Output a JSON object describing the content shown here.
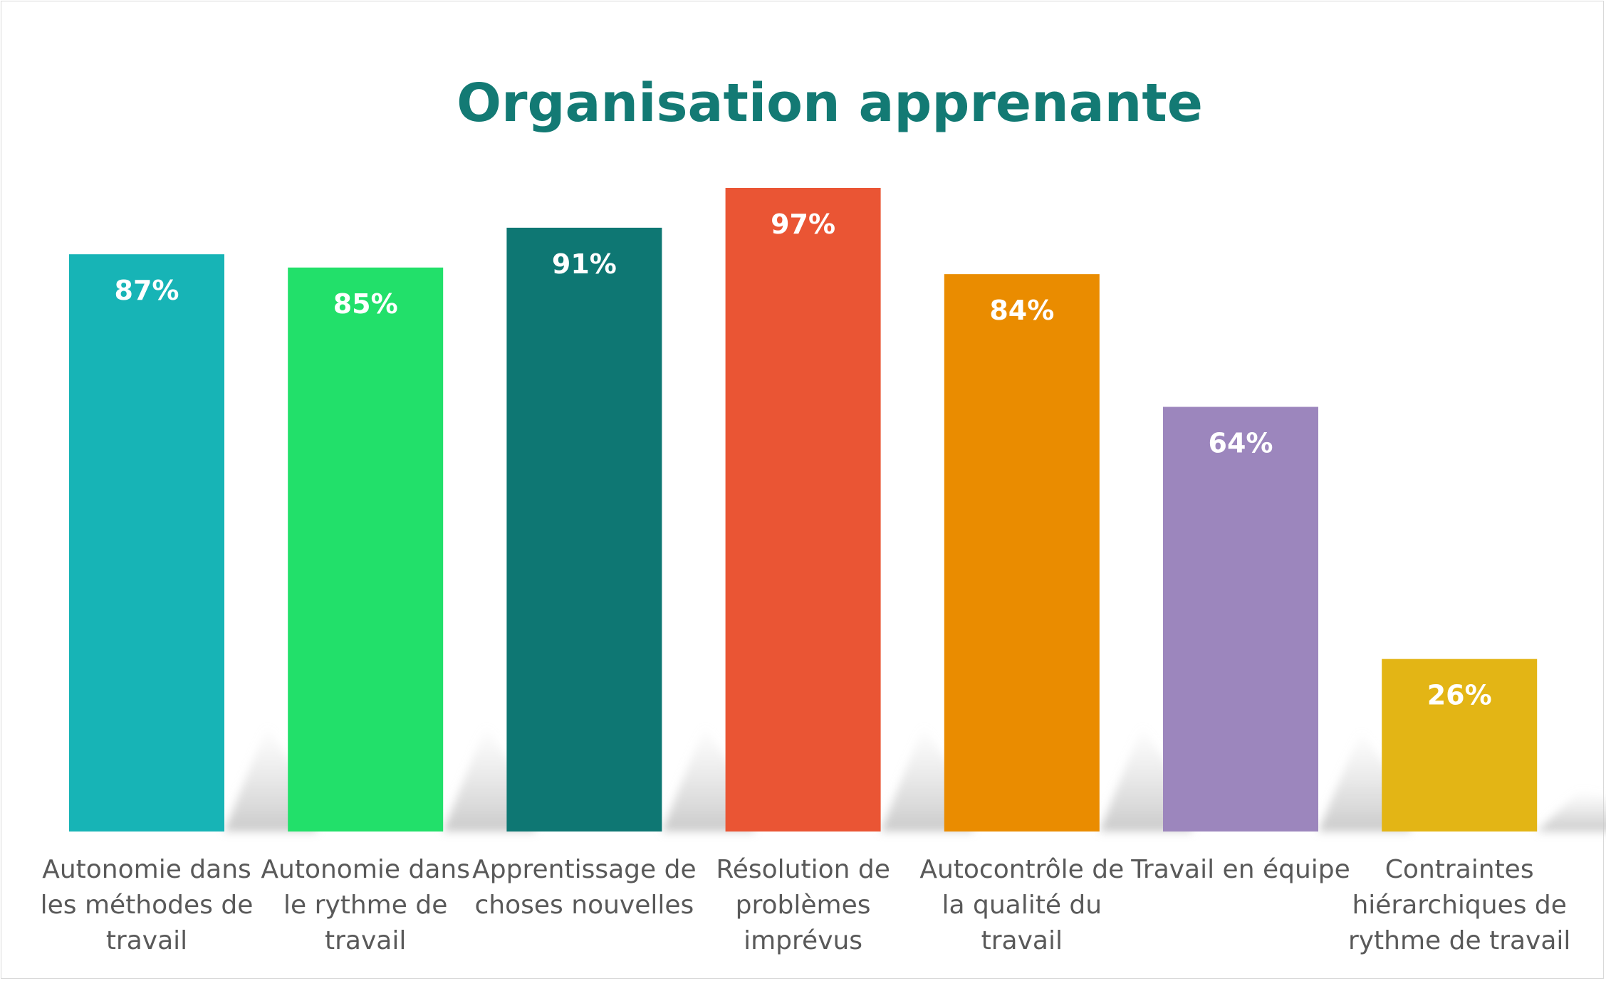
{
  "chart_data": {
    "type": "bar",
    "title": "Organisation apprenante",
    "xlabel": "",
    "ylabel": "",
    "ylim": [
      0,
      100
    ],
    "grid": false,
    "legend": "none",
    "categories": [
      [
        "Autonomie dans",
        "les méthodes de",
        "travail"
      ],
      [
        "Autonomie dans",
        "le rythme de",
        "travail"
      ],
      [
        "Apprentissage de",
        "choses nouvelles"
      ],
      [
        "Résolution de",
        "problèmes",
        "imprévus"
      ],
      [
        "Autocontrôle de",
        "la qualité du",
        "travail"
      ],
      [
        "Travail en équipe"
      ],
      [
        "Contraintes",
        "hiérarchiques de",
        "rythme de travail"
      ]
    ],
    "values": [
      87,
      85,
      91,
      97,
      84,
      64,
      26
    ],
    "value_labels": [
      "87%",
      "85%",
      "91%",
      "97%",
      "84%",
      "64%",
      "26%"
    ],
    "colors": [
      "#17b4b6",
      "#22e06a",
      "#0e7773",
      "#ea5534",
      "#ea8c00",
      "#9c86bd",
      "#e3b515"
    ]
  }
}
